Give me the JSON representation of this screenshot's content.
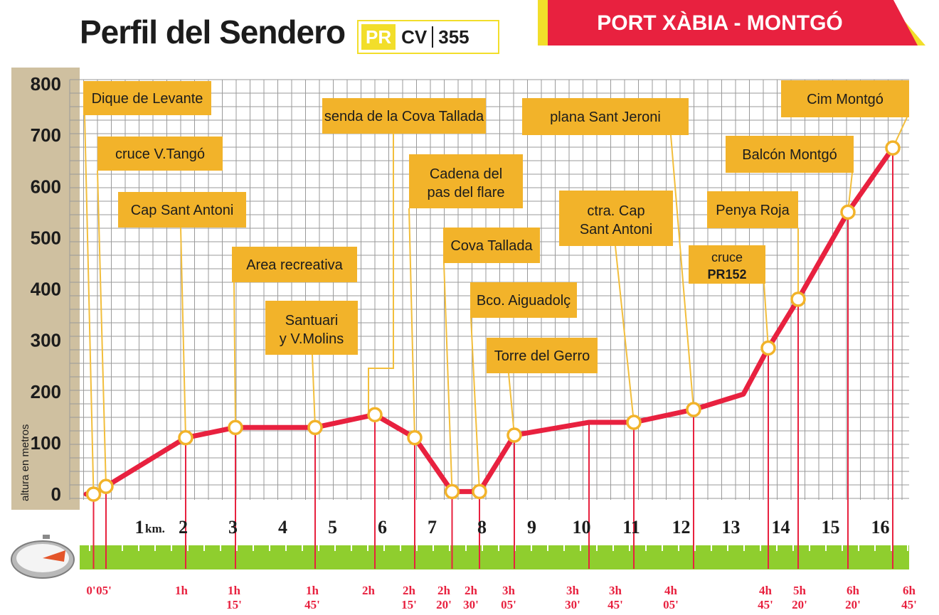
{
  "header": {
    "title": "Perfil del Sendero",
    "badge": {
      "pr": "PR",
      "cv": "CV",
      "number": "355"
    },
    "route": "PORT XÀBIA - MONTGÓ"
  },
  "colors": {
    "route_red": "#e8213f",
    "label_box": "#f2b32a",
    "vline": "#f2be3c",
    "axis_panel": "#cfc0a0",
    "grass": "#8fce2e",
    "badge_yellow": "#f2de2a"
  },
  "chart_data": {
    "type": "line",
    "ylabel": "altura en metros",
    "ylim": [
      0,
      800
    ],
    "yticks": [
      0,
      100,
      200,
      300,
      400,
      500,
      600,
      700,
      800
    ],
    "xlabel_unit": "km.",
    "km_ticks": [
      "1",
      "2",
      "3",
      "4",
      "5",
      "6",
      "7",
      "8",
      "9",
      "10",
      "11",
      "12",
      "13",
      "14",
      "15",
      "16"
    ],
    "profile": [
      {
        "km": 0.0,
        "alt": 0
      },
      {
        "km": 0.15,
        "alt": 0
      },
      {
        "km": 0.4,
        "alt": 15
      },
      {
        "km": 2.0,
        "alt": 110
      },
      {
        "km": 3.0,
        "alt": 130
      },
      {
        "km": 4.6,
        "alt": 130
      },
      {
        "km": 5.8,
        "alt": 155
      },
      {
        "km": 6.6,
        "alt": 110
      },
      {
        "km": 7.35,
        "alt": 5
      },
      {
        "km": 7.9,
        "alt": 5
      },
      {
        "km": 8.6,
        "alt": 115
      },
      {
        "km": 10.1,
        "alt": 140
      },
      {
        "km": 11.0,
        "alt": 140
      },
      {
        "km": 12.2,
        "alt": 165
      },
      {
        "km": 13.2,
        "alt": 195
      },
      {
        "km": 13.7,
        "alt": 285
      },
      {
        "km": 14.3,
        "alt": 380
      },
      {
        "km": 15.3,
        "alt": 550
      },
      {
        "km": 16.2,
        "alt": 675
      }
    ],
    "waypoints": [
      {
        "name": "Dique de Levante",
        "km": 0.15,
        "alt": 0,
        "time": "0'"
      },
      {
        "name": "cruce V.Tangó",
        "km": 0.4,
        "alt": 15,
        "time": "05'"
      },
      {
        "name": "Cap Sant Antoni",
        "km": 2.0,
        "alt": 110,
        "time": "1h"
      },
      {
        "name": "Area recreativa",
        "km": 3.0,
        "alt": 130,
        "time": "1h 15'"
      },
      {
        "name": "Santuari y V.Molins",
        "km": 4.6,
        "alt": 130,
        "time": "1h 45'"
      },
      {
        "name": "senda de la Cova Tallada",
        "km": 5.8,
        "alt": 155,
        "time": "2h"
      },
      {
        "name": "Cadena del pas del flare",
        "km": 6.6,
        "alt": 110,
        "time": "2h 15'"
      },
      {
        "name": "Cova Tallada",
        "km": 7.35,
        "alt": 5,
        "time": "2h 20'"
      },
      {
        "name": "Bco. Aiguadolç",
        "km": 7.9,
        "alt": 5,
        "time": "2h 30'"
      },
      {
        "name": "Torre del Gerro",
        "km": 8.6,
        "alt": 115,
        "time": "3h 05'"
      },
      {
        "name": "",
        "km": 10.1,
        "alt": 140,
        "time": "3h 30'"
      },
      {
        "name": "ctra. Cap Sant Antoni",
        "km": 11.0,
        "alt": 140,
        "time": "3h 45'"
      },
      {
        "name": "plana Sant Jeroni",
        "km": 12.2,
        "alt": 165,
        "time": "4h 05'"
      },
      {
        "name": "cruce PR152",
        "km": 13.7,
        "alt": 285,
        "time": "4h 45'"
      },
      {
        "name": "Penya Roja",
        "km": 14.3,
        "alt": 380,
        "time": "5h 20'"
      },
      {
        "name": "Balcón Montgó",
        "km": 15.3,
        "alt": 550,
        "time": "6h 20'"
      },
      {
        "name": "Cim Montgó",
        "km": 16.2,
        "alt": 675,
        "time": "6h 45'"
      }
    ]
  }
}
